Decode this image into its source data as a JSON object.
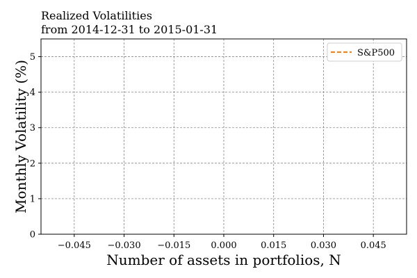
{
  "chart_data": {
    "type": "line",
    "title": "Realized Volatilities",
    "subtitle": "from 2014-12-31 to 2015-01-31",
    "xlabel": "Number of assets in portfolios, N",
    "ylabel": "Monthly Volatility (%)",
    "xlim": [
      -0.055,
      0.055
    ],
    "ylim": [
      0,
      5.5
    ],
    "x_ticks": [
      -0.045,
      -0.03,
      -0.015,
      0.0,
      0.015,
      0.03,
      0.045
    ],
    "x_tick_labels": [
      "−0.045",
      "−0.030",
      "−0.015",
      "0.000",
      "0.015",
      "0.030",
      "0.045"
    ],
    "y_ticks": [
      0,
      1,
      2,
      3,
      4,
      5
    ],
    "y_tick_labels": [
      "0",
      "1",
      "2",
      "3",
      "4",
      "5"
    ],
    "grid": true,
    "legend_position": "top-right",
    "series": [
      {
        "name": "S&P500",
        "color": "#ff7f0e",
        "style": "dashed",
        "x": [],
        "y": []
      }
    ]
  }
}
